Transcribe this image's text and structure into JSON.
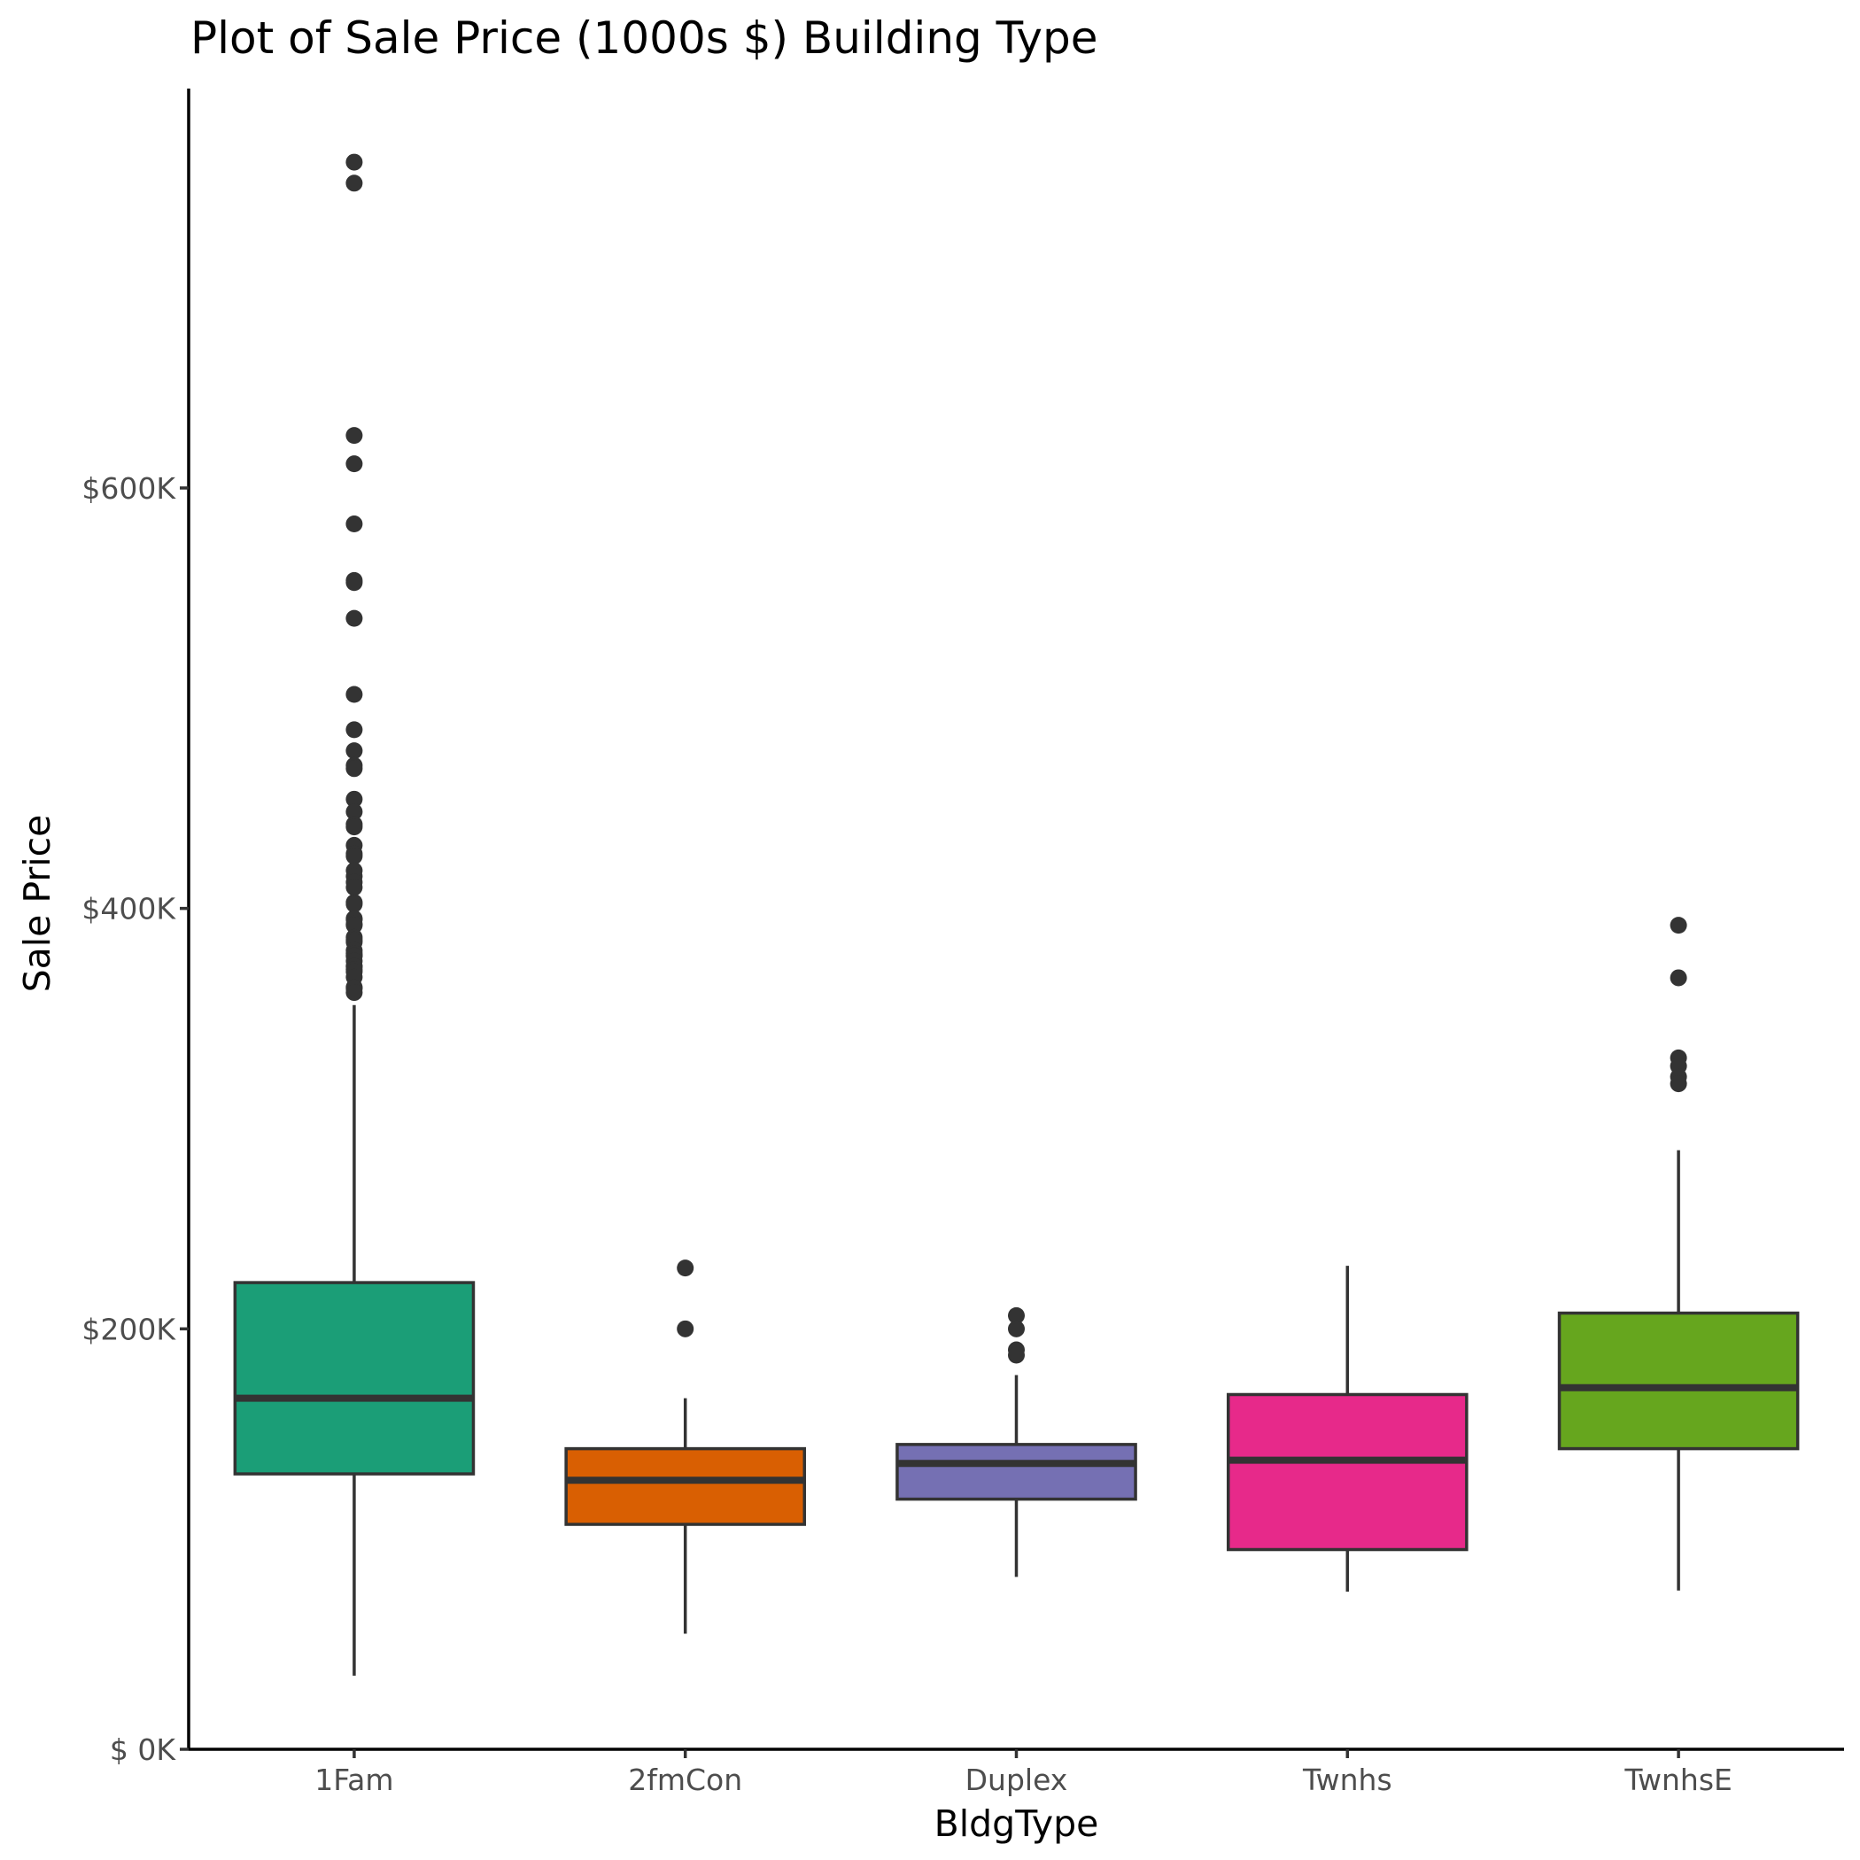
{
  "chart_data": {
    "type": "box",
    "title": "Plot of Sale Price (1000s $) Building Type",
    "xlabel": "BldgType",
    "ylabel": "Sale Price",
    "ylim": [
      0,
      790000
    ],
    "y_ticks": [
      {
        "value": 0,
        "label": "$  0K"
      },
      {
        "value": 200000,
        "label": "$200K"
      },
      {
        "value": 400000,
        "label": "$400K"
      },
      {
        "value": 600000,
        "label": "$600K"
      }
    ],
    "grid": false,
    "legend": "none",
    "categories": [
      "1Fam",
      "2fmCon",
      "Duplex",
      "Twnhs",
      "TwnhsE"
    ],
    "boxes": [
      {
        "category": "1Fam",
        "color": "#1b9e77",
        "whisker_low": 35000,
        "q1": 131000,
        "median": 167000,
        "q3": 222000,
        "whisker_high": 354000,
        "outliers": [
          755000,
          745000,
          625000,
          611500,
          582900,
          556000,
          555000,
          538000,
          501800,
          485000,
          475000,
          468000,
          466500,
          451950,
          446000,
          440000,
          438780,
          430000,
          426000,
          424870,
          418000,
          415298,
          412500,
          410000,
          402861,
          402000,
          395192,
          394617,
          392500,
          392000,
          386250,
          385000,
          383970,
          380000,
          378500,
          377500,
          377426,
          375000,
          372500,
          372402,
          370878,
          369900,
          367294,
          362500,
          361919,
          360000
        ]
      },
      {
        "category": "2fmCon",
        "color": "#d95f02",
        "whisker_low": 55000,
        "q1": 107000,
        "median": 128000,
        "q3": 143000,
        "whisker_high": 167000,
        "outliers": [
          228950,
          200000
        ]
      },
      {
        "category": "Duplex",
        "color": "#7570b3",
        "whisker_low": 82000,
        "q1": 119000,
        "median": 136000,
        "q3": 145000,
        "whisker_high": 178000,
        "outliers": [
          206300,
          200000,
          190000,
          187500
        ]
      },
      {
        "category": "Twnhs",
        "color": "#e7298a",
        "whisker_low": 75000,
        "q1": 95000,
        "median": 137500,
        "q3": 168750,
        "whisker_high": 230000,
        "outliers": []
      },
      {
        "category": "TwnhsE",
        "color": "#66a61e",
        "whisker_low": 75500,
        "q1": 143000,
        "median": 172000,
        "q3": 207500,
        "whisker_high": 285000,
        "outliers": [
          392000,
          367000,
          328900,
          325000,
          319900,
          316600
        ]
      }
    ]
  }
}
